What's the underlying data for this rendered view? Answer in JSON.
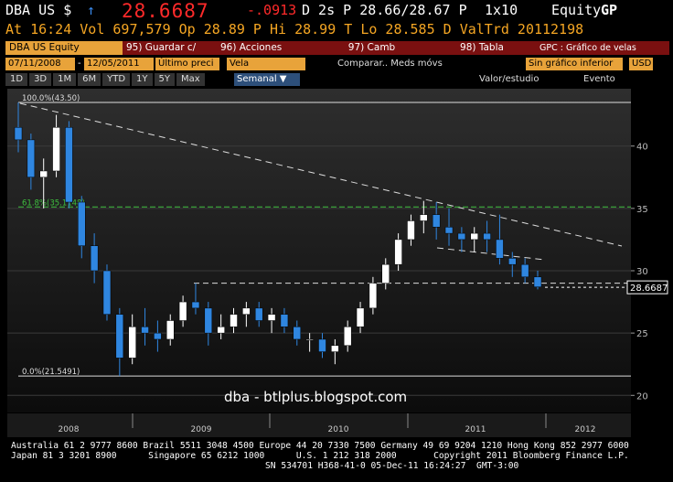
{
  "header": {
    "ticker": "DBA US $",
    "arrow": "↑",
    "price": "28.6687",
    "change": "-.0913",
    "quote": "D 2s P 28.66/28.67 P",
    "size": "1x10",
    "function": "Equity",
    "function_code": "GP",
    "stats": "At 16:24 Vol 697,579 Op 28.89 P Hi 28.99 T Lo 28.585 D ValTrd 20112198"
  },
  "toolbar": {
    "security": "DBA US Equity",
    "buttons": [
      "95) Guardar c/",
      "96) Acciones",
      "97) Camb",
      "98) Tabla"
    ],
    "chart_kind": "GPC : Gráfico de velas",
    "start_date": "07/11/2008",
    "dash": "-",
    "end_date": "12/05/2011",
    "field": "Último preci",
    "style": "Vela",
    "compare": "Comparar.. Meds móvs",
    "lower": "Sin gráfico inferior",
    "currency": "USD",
    "ranges": [
      "1D",
      "3D",
      "1M",
      "6M",
      "YTD",
      "1Y",
      "5Y",
      "Max"
    ],
    "period": "Semanal ▼",
    "study": "Valor/estudio",
    "event": "Evento"
  },
  "chart_data": {
    "type": "candlestick",
    "open": [
      41.5,
      40.5,
      37.5,
      38,
      41.5,
      35.5,
      32,
      30,
      26.5,
      23,
      25.5,
      25,
      24.5,
      26,
      27.5,
      27,
      25,
      25.5,
      26.5,
      27,
      26,
      26.5,
      25.5,
      24.5,
      24.5,
      23.5,
      24,
      25.5,
      27,
      29,
      30.5,
      32.5,
      34,
      34.5,
      33.5,
      33,
      32.5,
      33,
      32.5,
      31,
      30.5,
      29.5
    ],
    "high": [
      43.5,
      41,
      39,
      42.5,
      42,
      36,
      33,
      30.5,
      27,
      26.5,
      27,
      26,
      26.5,
      28,
      29,
      27.5,
      26.5,
      27,
      27.5,
      27.5,
      27,
      27,
      26,
      25,
      25,
      24.5,
      26,
      27.5,
      29.5,
      31,
      33,
      34.5,
      35.6,
      35.5,
      35,
      33.5,
      33.5,
      34,
      34.5,
      31.5,
      31,
      30
    ],
    "low": [
      39.5,
      36.5,
      35,
      37.5,
      35,
      31,
      29,
      26,
      21.55,
      22.5,
      24,
      23.5,
      24,
      25.5,
      26.5,
      24,
      24.5,
      25,
      25.5,
      25.5,
      25,
      25,
      24,
      23.5,
      23,
      22.5,
      23.5,
      25,
      26.5,
      28.5,
      30,
      32,
      33,
      32.5,
      32,
      31.5,
      31.5,
      31.5,
      30.5,
      29.5,
      29,
      28.5
    ],
    "close": [
      40.5,
      37.5,
      38,
      41.5,
      35.5,
      32,
      30,
      26.5,
      23,
      25.5,
      25,
      24.5,
      26,
      27.5,
      27,
      25,
      25.5,
      26.5,
      27,
      26,
      26.5,
      25.5,
      24.5,
      24.5,
      23.5,
      24,
      25.5,
      27,
      29,
      30.5,
      32.5,
      34,
      34.5,
      33.5,
      33,
      32.5,
      33,
      32.5,
      31,
      30.5,
      29.5,
      28.7
    ],
    "x_labels": [
      "2008",
      "2009",
      "2010",
      "2011",
      "2012"
    ],
    "up_color": "#ffffff",
    "down_color": "#2f86e0",
    "ylim": [
      18.7,
      44.6
    ],
    "yticks": [
      20,
      25,
      30,
      35,
      40
    ],
    "grid": true,
    "levels": [
      {
        "value": 43.5,
        "label": "100.0%(43.50)",
        "color": "#dddddd"
      },
      {
        "value": 35.1148,
        "label": "61.8%(35.1148)",
        "color": "#3fbf3f"
      },
      {
        "value": 21.5491,
        "label": "0.0%(21.5491)",
        "color": "#dddddd"
      }
    ],
    "last_price": {
      "value": 28.6687,
      "label": "28.6687"
    },
    "annotation": "dba - btlplus.blogspot.com"
  },
  "footer": [
    "Australia 61 2 9777 8600 Brazil 5511 3048 4500 Europe 44 20 7330 7500 Germany 49 69 9204 1210 Hong Kong 852 2977 6000",
    "Japan 81 3 3201 8900      Singapore 65 6212 1000      U.S. 1 212 318 2000       Copyright 2011 Bloomberg Finance L.P.",
    "SN 534701 H368-41-0 05-Dec-11 16:24:27  GMT-3:00"
  ]
}
